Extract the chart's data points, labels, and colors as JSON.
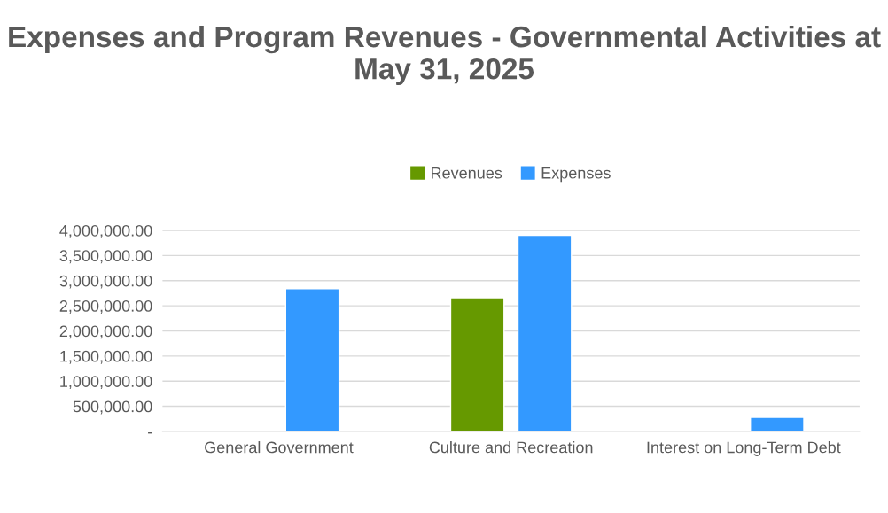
{
  "chart_data": {
    "type": "bar",
    "title": "Expenses and Program Revenues - Governmental Activities at May 31, 2025",
    "categories": [
      "General Government",
      "Culture and Recreation",
      "Interest on Long-Term Debt"
    ],
    "series": [
      {
        "name": "Revenues",
        "color": "#669900",
        "values": [
          null,
          2660000,
          null
        ]
      },
      {
        "name": "Expenses",
        "color": "#3399ff",
        "values": [
          2840000,
          3900000,
          280000
        ]
      }
    ],
    "ylim": [
      0,
      4000000
    ],
    "yticks": [
      {
        "value": 0,
        "label": "-"
      },
      {
        "value": 500000,
        "label": "500,000.00"
      },
      {
        "value": 1000000,
        "label": "1,000,000.00"
      },
      {
        "value": 1500000,
        "label": "1,500,000.00"
      },
      {
        "value": 2000000,
        "label": "2,000,000.00"
      },
      {
        "value": 2500000,
        "label": "2,500,000.00"
      },
      {
        "value": 3000000,
        "label": "3,000,000.00"
      },
      {
        "value": 3500000,
        "label": "3,500,000.00"
      },
      {
        "value": 4000000,
        "label": "4,000,000.00"
      }
    ],
    "grid": "y",
    "legend": "top"
  }
}
